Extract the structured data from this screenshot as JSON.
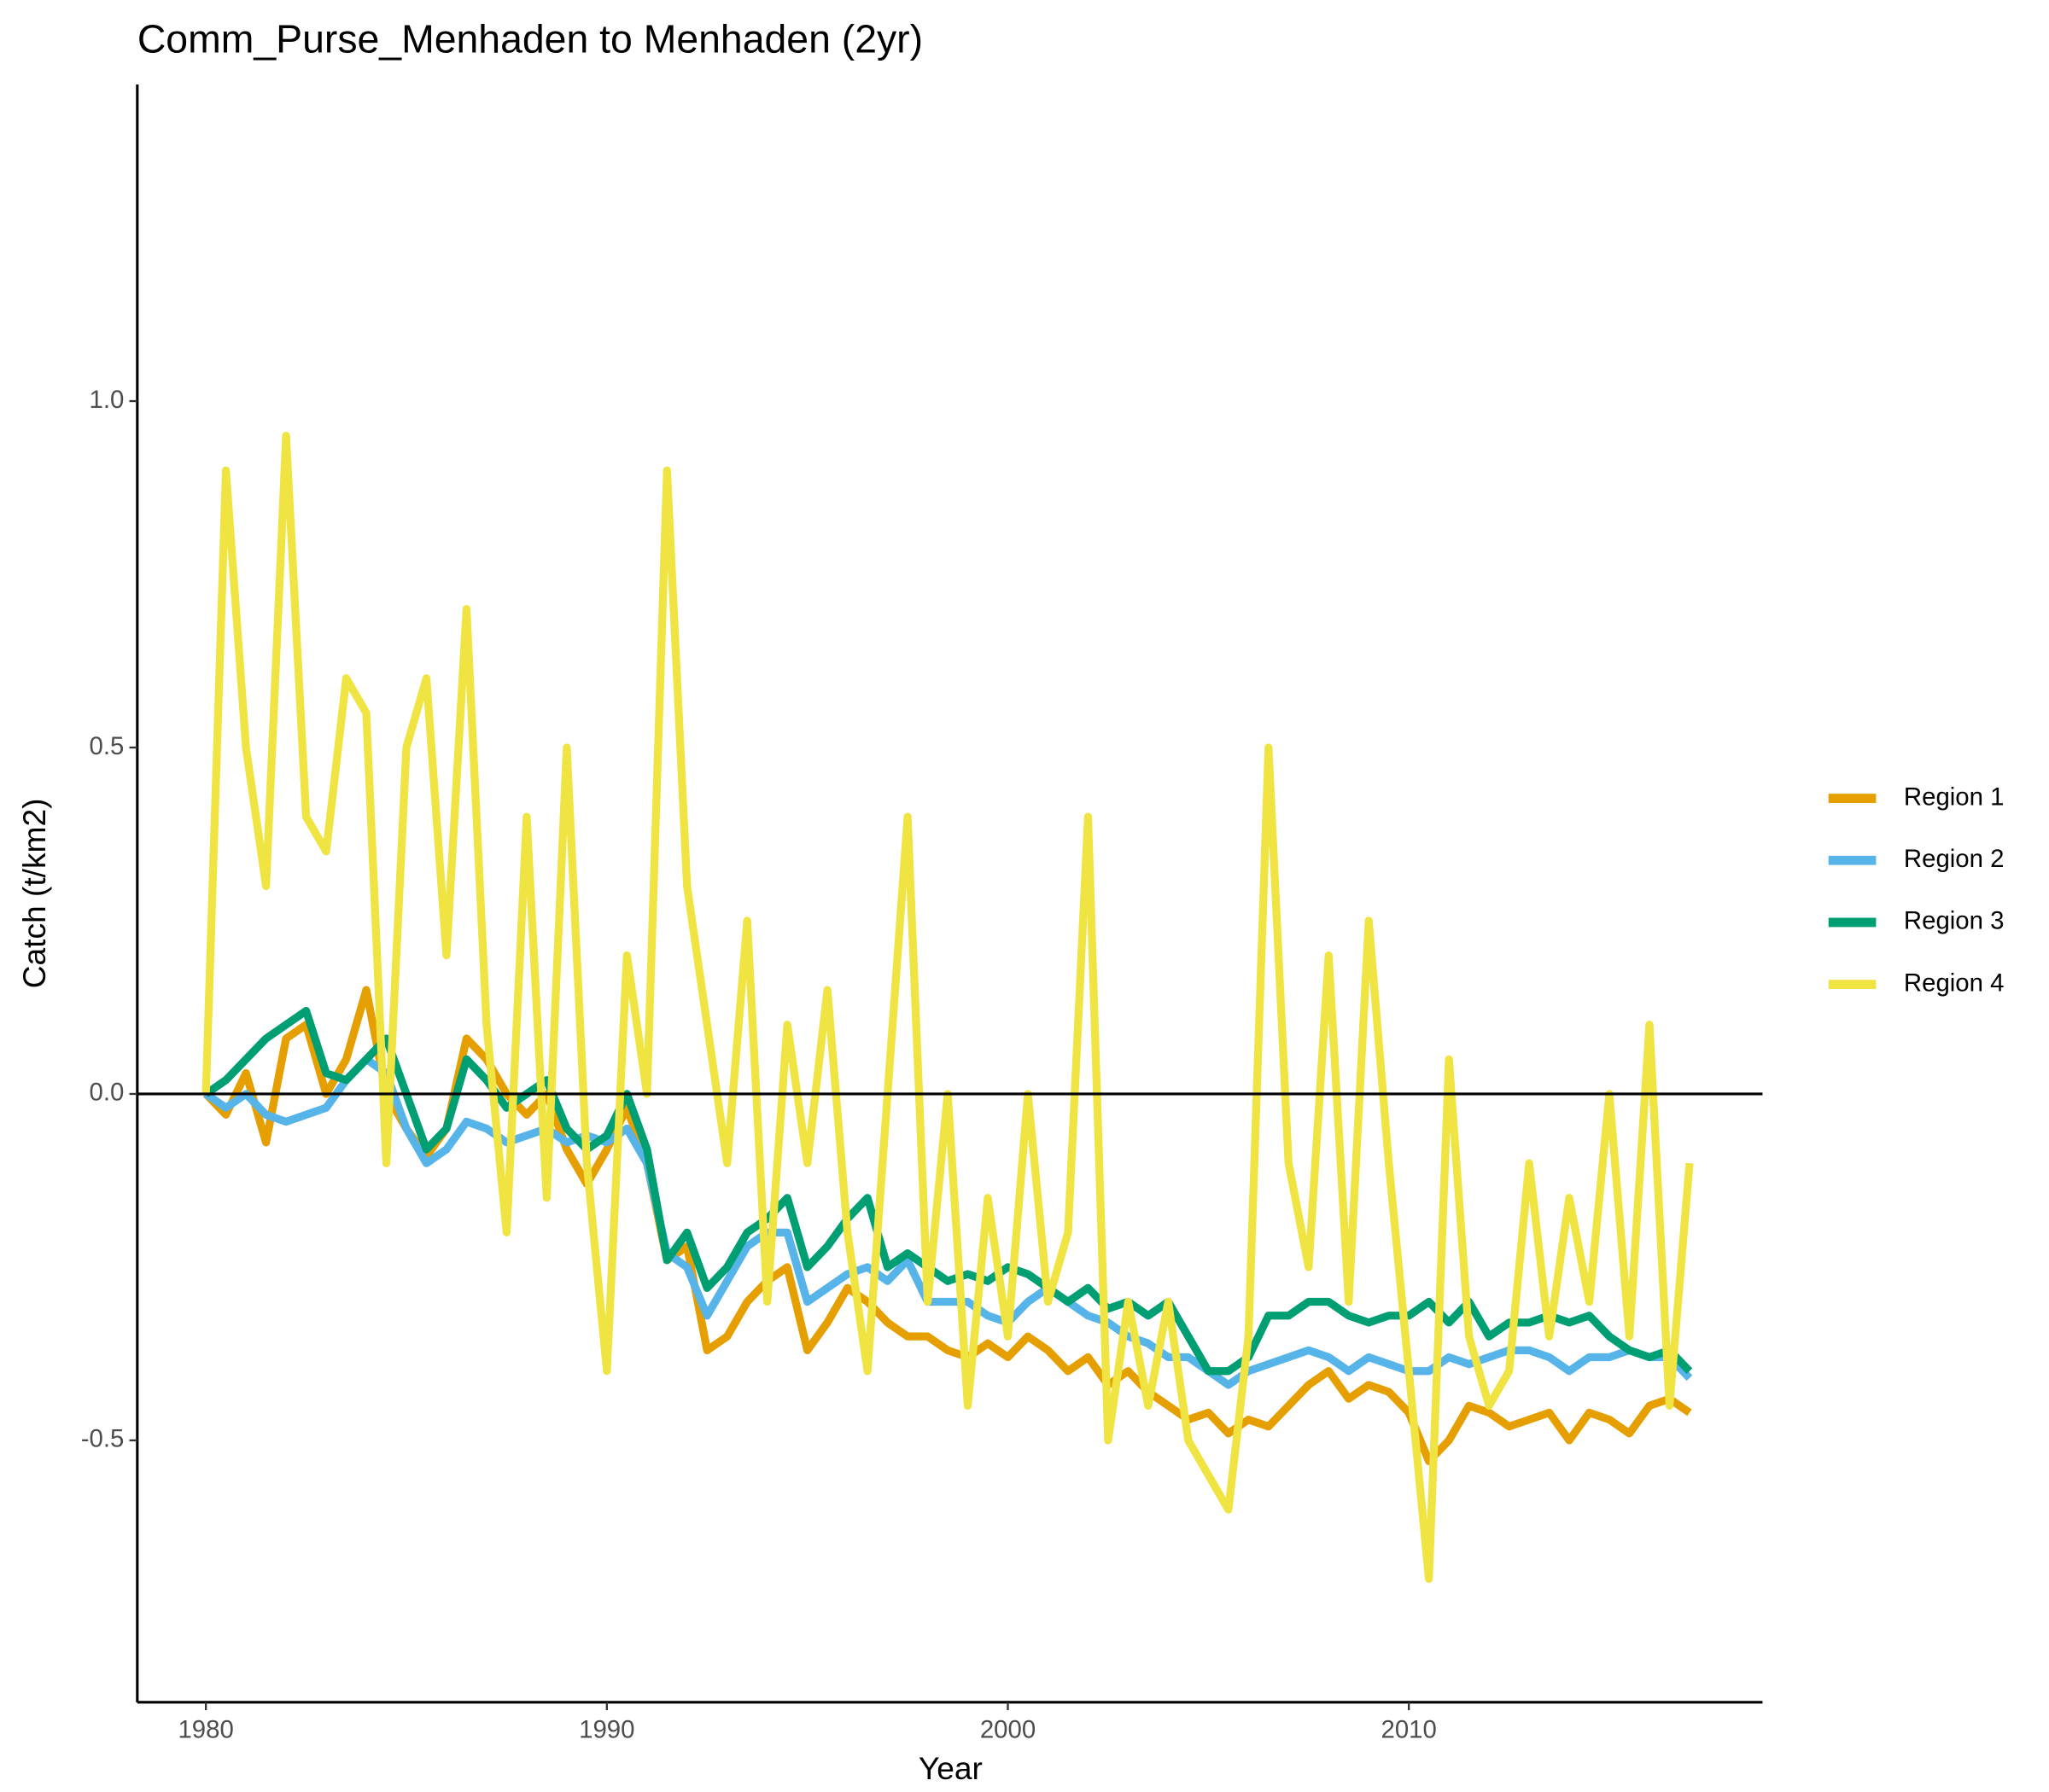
{
  "chart_data": {
    "type": "line",
    "title": "Comm_Purse_Menhaden to Menhaden (2yr)",
    "x_label": "Year",
    "y_label": "Catch (t/km2)",
    "xlim": [
      1978.29,
      2018.82
    ],
    "ylim": [
      -0.878,
      1.457
    ],
    "xticks": [
      1980,
      1990,
      2000,
      2010
    ],
    "yticks": [
      -0.5,
      {
        "value": 0,
        "label": "0.0"
      },
      0.5,
      {
        "value": 1,
        "label": "1.0"
      }
    ],
    "hline": 0,
    "grid": false,
    "legend": "right",
    "x": [
      1980,
      1980.5,
      1981,
      1981.5,
      1982,
      1982.5,
      1983,
      1983.5,
      1984,
      1984.5,
      1985,
      1985.5,
      1986,
      1986.5,
      1987,
      1987.5,
      1988,
      1988.5,
      1989,
      1989.5,
      1990,
      1990.5,
      1991,
      1991.5,
      1992,
      1992.5,
      1993,
      1993.5,
      1994,
      1994.5,
      1995,
      1995.5,
      1996,
      1996.5,
      1997,
      1997.5,
      1998,
      1998.5,
      1999,
      1999.5,
      2000,
      2000.5,
      2001,
      2001.5,
      2002,
      2002.5,
      2003,
      2003.5,
      2004,
      2004.5,
      2005,
      2005.5,
      2006,
      2006.5,
      2007,
      2007.5,
      2008,
      2008.5,
      2009,
      2009.5,
      2010,
      2010.5,
      2011,
      2011.5,
      2012,
      2012.5,
      2013,
      2013.5,
      2014,
      2014.5,
      2015,
      2015.5,
      2016,
      2016.5,
      2017
    ],
    "series": [
      {
        "name": "Region 1",
        "color": "#E69F00",
        "values": [
          0,
          -0.03,
          0.03,
          -0.07,
          0.08,
          0.1,
          0,
          0.05,
          0.15,
          0,
          -0.05,
          -0.09,
          -0.05,
          0.08,
          0.05,
          0,
          -0.03,
          0,
          -0.08,
          -0.13,
          -0.08,
          -0.02,
          -0.1,
          -0.24,
          -0.22,
          -0.37,
          -0.35,
          -0.3,
          -0.27,
          -0.25,
          -0.37,
          -0.33,
          -0.28,
          -0.3,
          -0.33,
          -0.35,
          -0.35,
          -0.37,
          -0.38,
          -0.36,
          -0.38,
          -0.35,
          -0.37,
          -0.4,
          -0.38,
          -0.42,
          -0.4,
          -0.43,
          -0.45,
          -0.47,
          -0.46,
          -0.49,
          -0.47,
          -0.48,
          -0.45,
          -0.42,
          -0.4,
          -0.44,
          -0.42,
          -0.43,
          -0.46,
          -0.53,
          -0.5,
          -0.45,
          -0.46,
          -0.48,
          -0.47,
          -0.46,
          -0.5,
          -0.46,
          -0.47,
          -0.49,
          -0.45,
          -0.44,
          -0.46
        ]
      },
      {
        "name": "Region 2",
        "color": "#56B4E9",
        "values": [
          0,
          -0.02,
          0,
          -0.03,
          -0.04,
          -0.03,
          -0.02,
          0.02,
          0.05,
          0.03,
          -0.05,
          -0.1,
          -0.08,
          -0.04,
          -0.05,
          -0.07,
          -0.06,
          -0.05,
          -0.07,
          -0.06,
          -0.07,
          -0.05,
          -0.1,
          -0.23,
          -0.25,
          -0.32,
          -0.27,
          -0.22,
          -0.2,
          -0.2,
          -0.3,
          -0.28,
          -0.26,
          -0.25,
          -0.27,
          -0.24,
          -0.3,
          -0.3,
          -0.3,
          -0.32,
          -0.33,
          -0.3,
          -0.28,
          -0.3,
          -0.32,
          -0.33,
          -0.35,
          -0.36,
          -0.38,
          -0.38,
          -0.4,
          -0.42,
          -0.4,
          -0.39,
          -0.38,
          -0.37,
          -0.38,
          -0.4,
          -0.38,
          -0.39,
          -0.4,
          -0.4,
          -0.38,
          -0.39,
          -0.38,
          -0.37,
          -0.37,
          -0.38,
          -0.4,
          -0.38,
          -0.38,
          -0.37,
          -0.38,
          -0.38,
          -0.41
        ]
      },
      {
        "name": "Region 3",
        "color": "#009E73",
        "values": [
          0,
          0.02,
          0.05,
          0.08,
          0.1,
          0.12,
          0.03,
          0.02,
          0.05,
          0.08,
          0,
          -0.08,
          -0.05,
          0.05,
          0.02,
          -0.02,
          0,
          0.02,
          -0.05,
          -0.08,
          -0.06,
          0,
          -0.08,
          -0.24,
          -0.2,
          -0.28,
          -0.25,
          -0.2,
          -0.18,
          -0.15,
          -0.25,
          -0.22,
          -0.18,
          -0.15,
          -0.25,
          -0.23,
          -0.25,
          -0.27,
          -0.26,
          -0.27,
          -0.25,
          -0.26,
          -0.28,
          -0.3,
          -0.28,
          -0.31,
          -0.3,
          -0.32,
          -0.3,
          -0.35,
          -0.4,
          -0.4,
          -0.38,
          -0.32,
          -0.32,
          -0.3,
          -0.3,
          -0.32,
          -0.33,
          -0.32,
          -0.32,
          -0.3,
          -0.33,
          -0.3,
          -0.35,
          -0.33,
          -0.33,
          -0.32,
          -0.33,
          -0.32,
          -0.35,
          -0.37,
          -0.38,
          -0.37,
          -0.4
        ]
      },
      {
        "name": "Region 4",
        "color": "#F0E442",
        "values": [
          0,
          0.9,
          0.5,
          0.3,
          0.95,
          0.4,
          0.35,
          0.6,
          0.55,
          -0.1,
          0.5,
          0.6,
          0.2,
          0.7,
          0.1,
          -0.2,
          0.4,
          -0.15,
          0.5,
          -0.1,
          -0.4,
          0.2,
          0,
          0.9,
          0.3,
          0.1,
          -0.1,
          0.25,
          -0.3,
          0.1,
          -0.1,
          0.15,
          -0.2,
          -0.4,
          0,
          0.4,
          -0.3,
          0,
          -0.45,
          -0.15,
          -0.35,
          0,
          -0.3,
          -0.2,
          0.4,
          -0.5,
          -0.3,
          -0.45,
          -0.3,
          -0.5,
          -0.55,
          -0.6,
          -0.35,
          0.5,
          -0.1,
          -0.25,
          0.2,
          -0.3,
          0.25,
          -0.1,
          -0.4,
          -0.7,
          0.05,
          -0.35,
          -0.45,
          -0.4,
          -0.1,
          -0.35,
          -0.15,
          -0.3,
          0,
          -0.35,
          0.1,
          -0.45,
          -0.1
        ]
      }
    ]
  }
}
